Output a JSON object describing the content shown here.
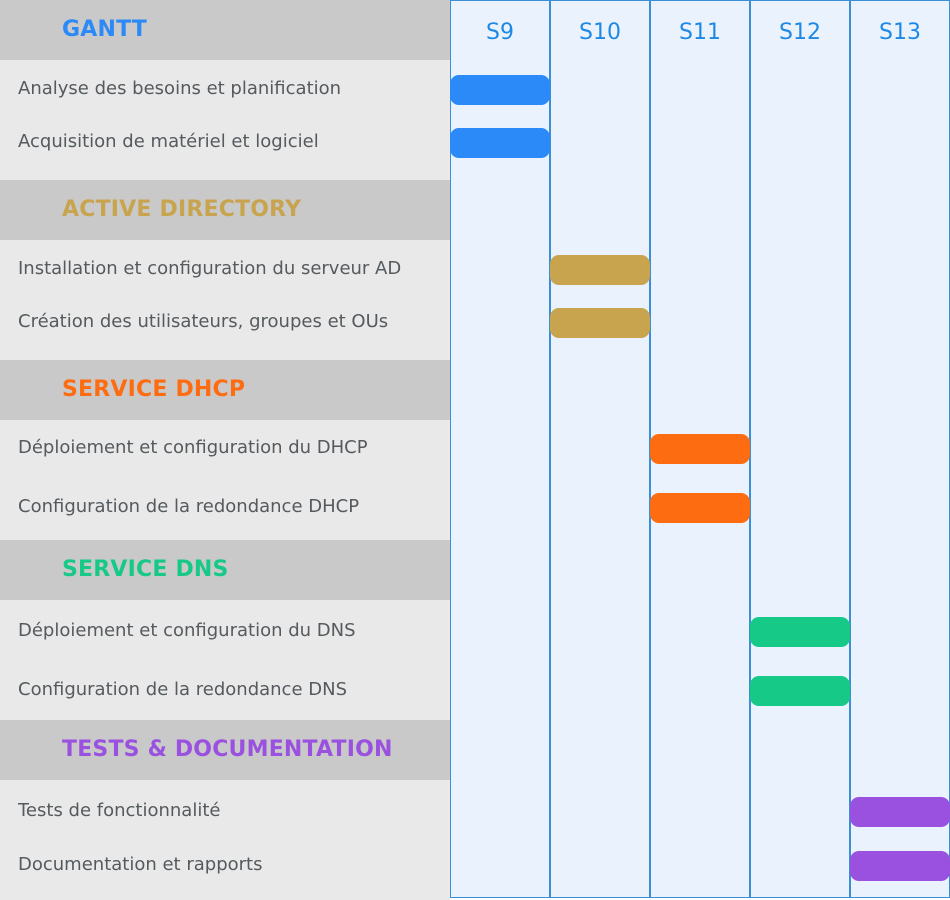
{
  "chart_data": {
    "type": "gantt",
    "title": "GANTT",
    "title_color": "#2b8af7",
    "weeks": [
      "S9",
      "S10",
      "S11",
      "S12",
      "S13"
    ],
    "sections": [
      {
        "name": "ACTIVE DIRECTORY",
        "color": "#c9a44f",
        "tasks": [
          {
            "name": "Installation et configuration du serveur AD",
            "week": "S10"
          },
          {
            "name": "Création des utilisateurs, groupes et OUs",
            "week": "S10"
          }
        ]
      },
      {
        "name": "SERVICE DHCP",
        "color": "#fe6c12",
        "tasks": [
          {
            "name": "Déploiement et configuration du DHCP",
            "week": "S11"
          },
          {
            "name": "Configuration de la redondance DHCP",
            "week": "S11"
          }
        ]
      },
      {
        "name": "SERVICE DNS",
        "color": "#16c987",
        "tasks": [
          {
            "name": "Déploiement et configuration du DNS",
            "week": "S12"
          },
          {
            "name": "Configuration de la redondance DNS",
            "week": "S12"
          }
        ]
      },
      {
        "name": "TESTS & DOCUMENTATION",
        "color": "#9b51e0",
        "tasks": [
          {
            "name": "Tests de fonctionnalité",
            "week": "S13"
          },
          {
            "name": "Documentation et rapports",
            "week": "S13"
          }
        ]
      }
    ],
    "intro_tasks": [
      {
        "name": "Analyse des besoins et planification",
        "week": "S9"
      },
      {
        "name": "Acquisition de matériel et logiciel",
        "week": "S9"
      }
    ],
    "intro_color": "#2b8af7"
  }
}
